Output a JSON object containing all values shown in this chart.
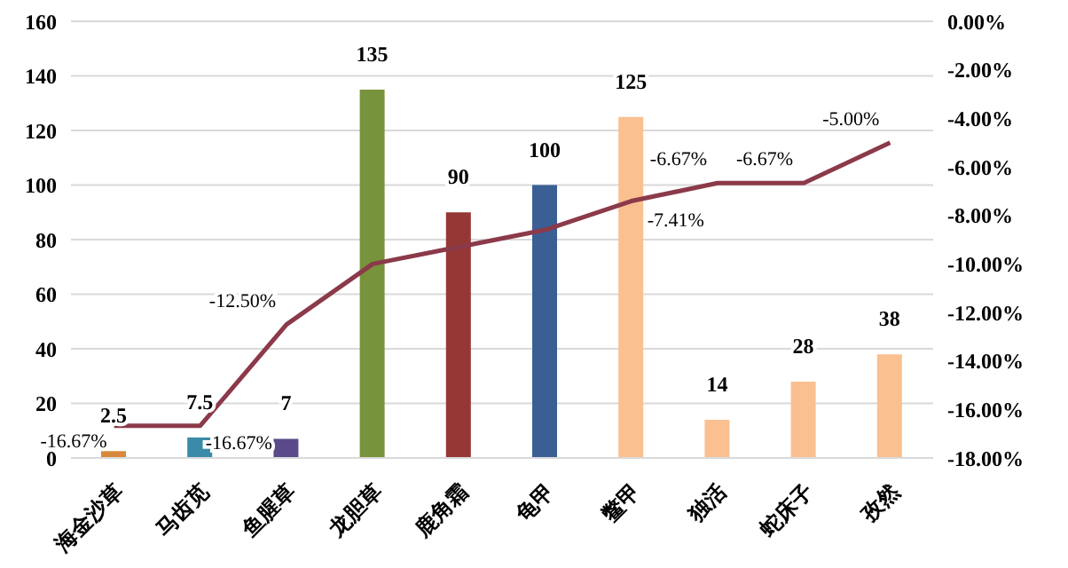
{
  "chart_data": {
    "type": "bar",
    "categories": [
      "海金沙草",
      "马齿苋",
      "鱼腥草",
      "龙胆草",
      "鹿角霜",
      "龟甲",
      "鳖甲",
      "独活",
      "蛇床子",
      "孜然"
    ],
    "series": [
      {
        "colors": [
          "#d7883a",
          "#3a8aa8",
          "#5a4a8a",
          "#77933c",
          "#953735",
          "#3a5f95",
          "#fac090",
          "#fac090",
          "#fac090",
          "#fac090"
        ],
        "values": [
          2.5,
          7.5,
          7,
          135,
          90,
          100,
          125,
          14,
          28,
          38
        ],
        "value_labels": [
          "2.5",
          "7.5",
          "7",
          "135",
          "90",
          "100",
          "125",
          "14",
          "28",
          "38"
        ]
      },
      {
        "type": "line",
        "axis": "y2",
        "color": "#8b3a4a",
        "values": [
          -16.67,
          -16.67,
          -12.5,
          -10.0,
          -9.3,
          -8.6,
          -7.41,
          -6.67,
          -6.67,
          -5.0
        ],
        "value_labels": [
          "-16.67%",
          "-16.67%",
          "-12.50%",
          null,
          null,
          null,
          "-7.41%",
          "-6.67%",
          "-6.67%",
          "-5.00%"
        ]
      }
    ],
    "ylim": [
      0,
      160
    ],
    "yticks": [
      0,
      20,
      40,
      60,
      80,
      100,
      120,
      140,
      160
    ],
    "y2lim": [
      -18,
      0
    ],
    "y2ticks": [
      {
        "value": -18,
        "label": "-18.00%"
      },
      {
        "value": -16,
        "label": "-16.00%"
      },
      {
        "value": -14,
        "label": "-14.00%"
      },
      {
        "value": -12,
        "label": "-12.00%"
      },
      {
        "value": -10,
        "label": "-10.00%"
      },
      {
        "value": -8,
        "label": "-8.00%"
      },
      {
        "value": -6,
        "label": "-6.00%"
      },
      {
        "value": -4,
        "label": "-4.00%"
      },
      {
        "value": -2,
        "label": "-2.00%"
      },
      {
        "value": 0,
        "label": "0.00%"
      }
    ],
    "grid": "y",
    "legend": false,
    "marker": "none",
    "line_style": "solid"
  }
}
